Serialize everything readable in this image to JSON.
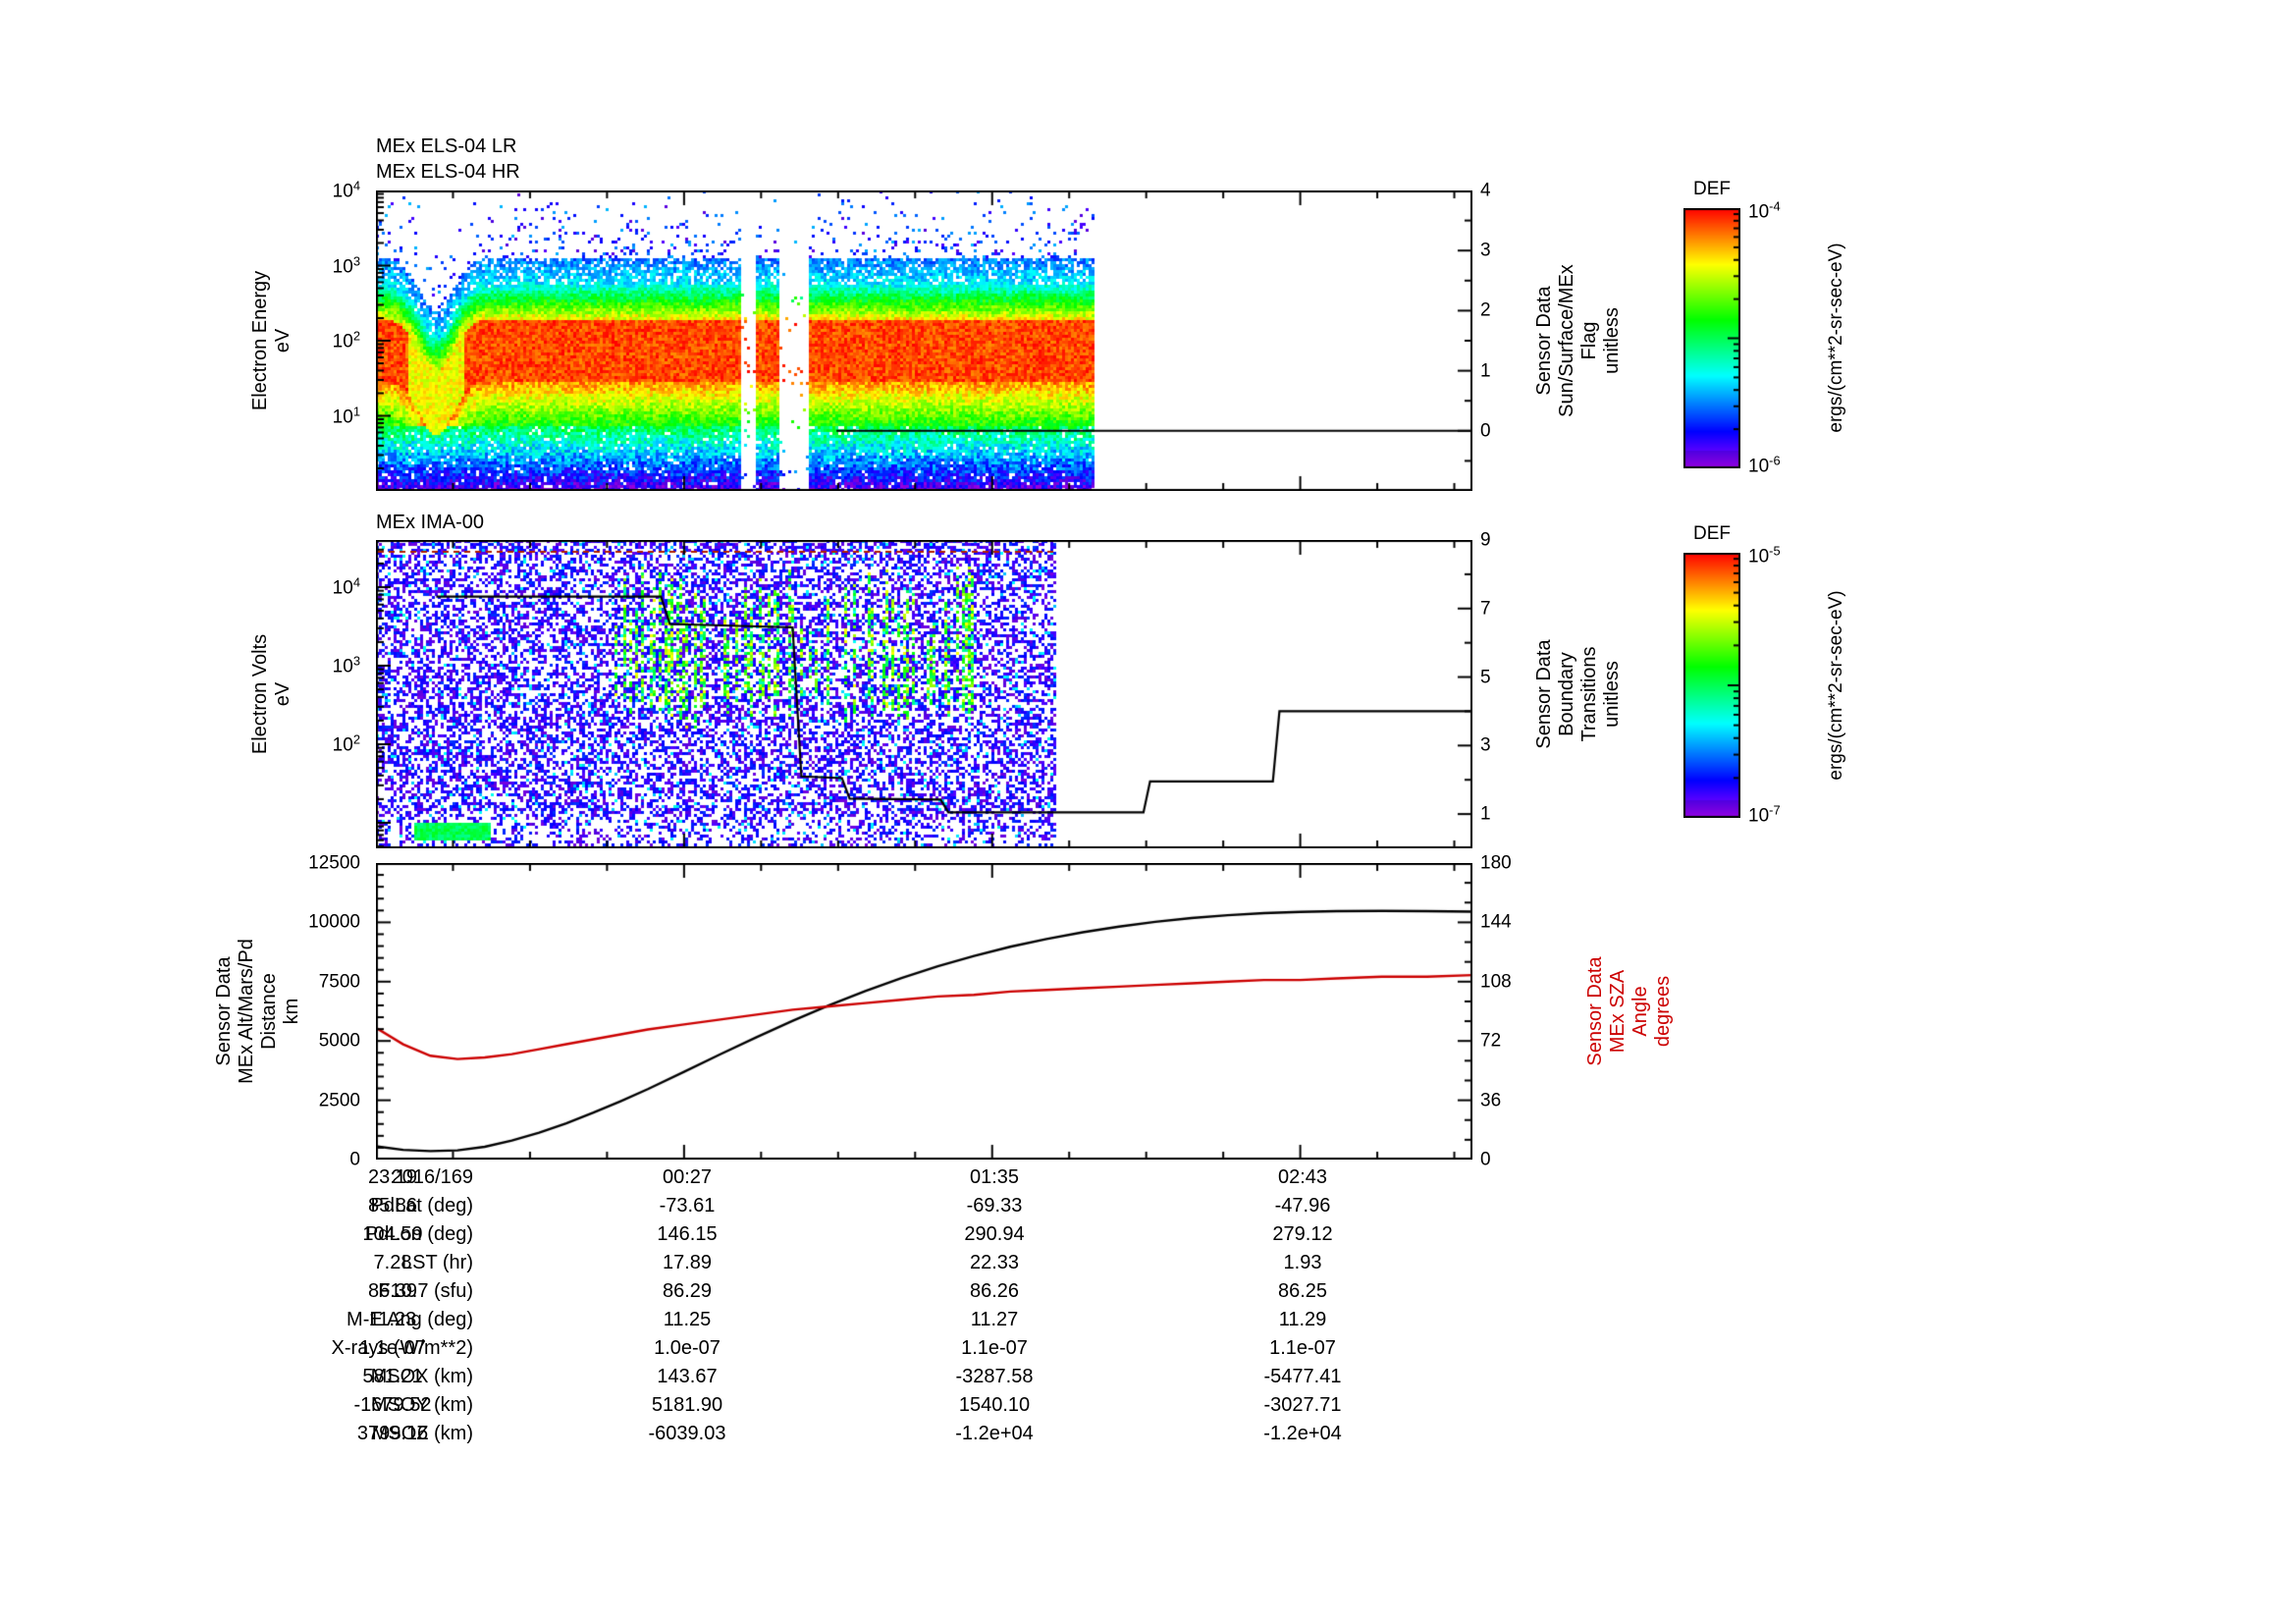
{
  "time_axis": {
    "labels": [
      "23:19",
      "00:27",
      "01:35",
      "02:43"
    ],
    "minutes": [
      0,
      68,
      136,
      204
    ],
    "total_minutes": 242,
    "date": "2016/169"
  },
  "chart_data": [
    {
      "type": "heatmap",
      "title_lines": [
        "MEx ELS-04 LR",
        "MEx ELS-04 HR"
      ],
      "ylabel": "Electron Energy\neV",
      "yscale": "log",
      "ylim_log10": [
        0,
        4
      ],
      "ytick_exponents": [
        4,
        3,
        2,
        1
      ],
      "right_axis": {
        "label": "Sensor Data\nSun/Surface/MEx\nFlag\nunitless",
        "ticks": [
          4,
          3,
          2,
          1,
          0
        ],
        "range": [
          -1,
          4
        ]
      },
      "flag_line": {
        "value": 0,
        "t_start_frac": 0.42,
        "t_end_frac": 1.0
      },
      "data_end_frac": 0.655,
      "gaps_t_frac": [
        [
          0.332,
          0.347
        ],
        [
          0.367,
          0.393
        ]
      ],
      "band": {
        "center_log10_ev": 1.95,
        "dip_center_t_frac": 0.055,
        "dip_depth_log10": 0.7,
        "dip_width_t_frac": 0.022
      },
      "colorbar": {
        "title": "DEF",
        "units": "ergs/(cm**2-sr-sec-eV)",
        "top_exp": -4,
        "bottom_exp": -6
      }
    },
    {
      "type": "heatmap",
      "title_lines": [
        "MEx IMA-00"
      ],
      "ylabel": "Electron Volts\neV",
      "yscale": "log",
      "ylim_log10": [
        0.675,
        4.6
      ],
      "ytick_exponents": [
        4,
        3,
        2
      ],
      "right_axis": {
        "label": "Sensor Data\nBoundary\nTransitions\nunitless",
        "ticks": [
          9,
          7,
          5,
          3,
          1
        ],
        "range": [
          0,
          9
        ]
      },
      "data_end_frac": 0.62,
      "streaks": {
        "t_range_frac": [
          0.21,
          0.545
        ],
        "log10_range": [
          2.25,
          4.35
        ]
      },
      "bottom_bar": {
        "t_range_frac": [
          0.035,
          0.105
        ],
        "log10_range": [
          0.8,
          1.02
        ]
      },
      "top_marker_log10": 4.45,
      "boundary_line_right_axis": [
        [
          0.055,
          7.35
        ],
        [
          0.26,
          7.35
        ],
        [
          0.268,
          6.55
        ],
        [
          0.38,
          6.45
        ],
        [
          0.388,
          2.1
        ],
        [
          0.425,
          2.05
        ],
        [
          0.432,
          1.45
        ],
        [
          0.515,
          1.42
        ],
        [
          0.522,
          1.05
        ],
        [
          0.7,
          1.05
        ],
        [
          0.706,
          1.95
        ],
        [
          0.818,
          1.95
        ],
        [
          0.824,
          4.0
        ],
        [
          1.0,
          4.0
        ]
      ],
      "colorbar": {
        "title": "DEF",
        "units": "ergs/(cm**2-sr-sec-eV)",
        "top_exp": -5,
        "bottom_exp": -7
      }
    },
    {
      "type": "line",
      "x_unit": "minutes since 23:19",
      "left_axis": {
        "label": "Sensor Data\nMEx Alt/Mars/Pd\nDistance\nkm",
        "range": [
          0,
          12500
        ],
        "ticks": [
          12500,
          10000,
          7500,
          5000,
          2500,
          0
        ]
      },
      "right_axis": {
        "label": "Sensor Data\nMEx SZA\nAngle\ndegrees",
        "range": [
          0,
          180
        ],
        "ticks": [
          180,
          144,
          108,
          72,
          36,
          0
        ],
        "color": "#cc0000"
      },
      "series": [
        {
          "name": "MEx Alt/Mars/Pd Distance",
          "units": "km",
          "color": "#000000",
          "axis": "left",
          "points": [
            [
              0,
              560
            ],
            [
              6,
              410
            ],
            [
              12,
              355
            ],
            [
              18,
              390
            ],
            [
              24,
              540
            ],
            [
              30,
              800
            ],
            [
              36,
              1130
            ],
            [
              42,
              1530
            ],
            [
              48,
              1980
            ],
            [
              54,
              2460
            ],
            [
              60,
              2970
            ],
            [
              68,
              3700
            ],
            [
              76,
              4440
            ],
            [
              84,
              5160
            ],
            [
              92,
              5850
            ],
            [
              100,
              6500
            ],
            [
              108,
              7100
            ],
            [
              116,
              7650
            ],
            [
              124,
              8150
            ],
            [
              132,
              8580
            ],
            [
              140,
              8970
            ],
            [
              148,
              9300
            ],
            [
              156,
              9580
            ],
            [
              164,
              9820
            ],
            [
              172,
              10020
            ],
            [
              180,
              10180
            ],
            [
              188,
              10300
            ],
            [
              196,
              10390
            ],
            [
              204,
              10440
            ],
            [
              212,
              10470
            ],
            [
              222,
              10480
            ],
            [
              232,
              10470
            ],
            [
              242,
              10450
            ]
          ]
        },
        {
          "name": "MEx SZA Angle",
          "units": "degrees",
          "color": "#cc0000",
          "axis": "right",
          "points": [
            [
              0,
              80
            ],
            [
              6,
              70
            ],
            [
              12,
              63
            ],
            [
              18,
              61
            ],
            [
              24,
              62
            ],
            [
              30,
              64
            ],
            [
              36,
              67
            ],
            [
              42,
              70
            ],
            [
              48,
              73
            ],
            [
              54,
              76
            ],
            [
              60,
              79
            ],
            [
              68,
              82
            ],
            [
              76,
              85
            ],
            [
              84,
              88
            ],
            [
              92,
              91
            ],
            [
              100,
              93
            ],
            [
              108,
              95
            ],
            [
              116,
              97
            ],
            [
              124,
              99
            ],
            [
              132,
              100
            ],
            [
              140,
              102
            ],
            [
              148,
              103
            ],
            [
              156,
              104
            ],
            [
              164,
              105
            ],
            [
              172,
              106
            ],
            [
              180,
              107
            ],
            [
              188,
              108
            ],
            [
              196,
              109
            ],
            [
              204,
              109
            ],
            [
              212,
              110
            ],
            [
              222,
              111
            ],
            [
              232,
              111
            ],
            [
              242,
              112
            ]
          ]
        }
      ]
    },
    {
      "type": "table",
      "rows": [
        {
          "label": "2016/169",
          "values": [
            "23:19",
            "00:27",
            "01:35",
            "02:43"
          ]
        },
        {
          "label": "PdLat (deg)",
          "values": [
            "85.86",
            "-73.61",
            "-69.33",
            "-47.96"
          ]
        },
        {
          "label": "PdLon (deg)",
          "values": [
            "104.59",
            "146.15",
            "290.94",
            "279.12"
          ]
        },
        {
          "label": "LST (hr)",
          "values": [
            "7.28",
            "17.89",
            "22.33",
            "1.93"
          ]
        },
        {
          "label": "F10.7 (sfu)",
          "values": [
            "86.39",
            "86.29",
            "86.26",
            "86.25"
          ]
        },
        {
          "label": "M-E Ang (deg)",
          "values": [
            "11.23",
            "11.25",
            "11.27",
            "11.29"
          ]
        },
        {
          "label": "X-rays (W/m**2)",
          "values": [
            "1.1e-07",
            "1.0e-07",
            "1.1e-07",
            "1.1e-07"
          ]
        },
        {
          "label": "MSOX (km)",
          "values": [
            "581.21",
            "143.67",
            "-3287.58",
            "-5477.41"
          ]
        },
        {
          "label": "MSOY (km)",
          "values": [
            "-1679.52",
            "5181.90",
            "1540.10",
            "-3027.71"
          ]
        },
        {
          "label": "MSOZ (km)",
          "values": [
            "3799.16",
            "-6039.03",
            "-1.2e+04",
            "-1.2e+04"
          ]
        }
      ]
    }
  ]
}
